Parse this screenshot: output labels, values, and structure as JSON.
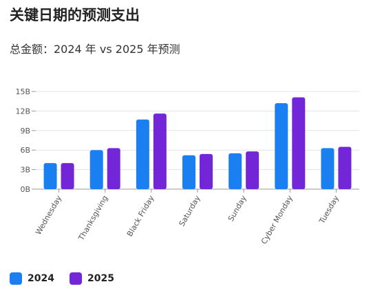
{
  "title": "关键日期的预测支出",
  "subtitle": "总金额：2024 年 vs 2025 年预测",
  "colors": {
    "2024": "#1a7ff0",
    "2025": "#7326d8",
    "grid": "#e3e3e3",
    "axis": "#999999",
    "tick_text": "#555555"
  },
  "chart_data": {
    "type": "bar",
    "categories": [
      "Wednesday",
      "Thanksgiving",
      "Black Friday",
      "Saturday",
      "Sunday",
      "Cyber Monday",
      "Tuesday"
    ],
    "series": [
      {
        "name": "2024",
        "values": [
          4.0,
          6.0,
          10.7,
          5.2,
          5.5,
          13.2,
          6.3
        ]
      },
      {
        "name": "2025",
        "values": [
          4.0,
          6.3,
          11.6,
          5.4,
          5.8,
          14.1,
          6.5
        ]
      }
    ],
    "yticks": [
      "0B",
      "3B",
      "6B",
      "9B",
      "12B",
      "15B"
    ],
    "ytick_values": [
      0,
      3,
      6,
      9,
      12,
      15
    ],
    "ylim": [
      0,
      15
    ],
    "grid": true,
    "legend_position": "bottom-left"
  }
}
